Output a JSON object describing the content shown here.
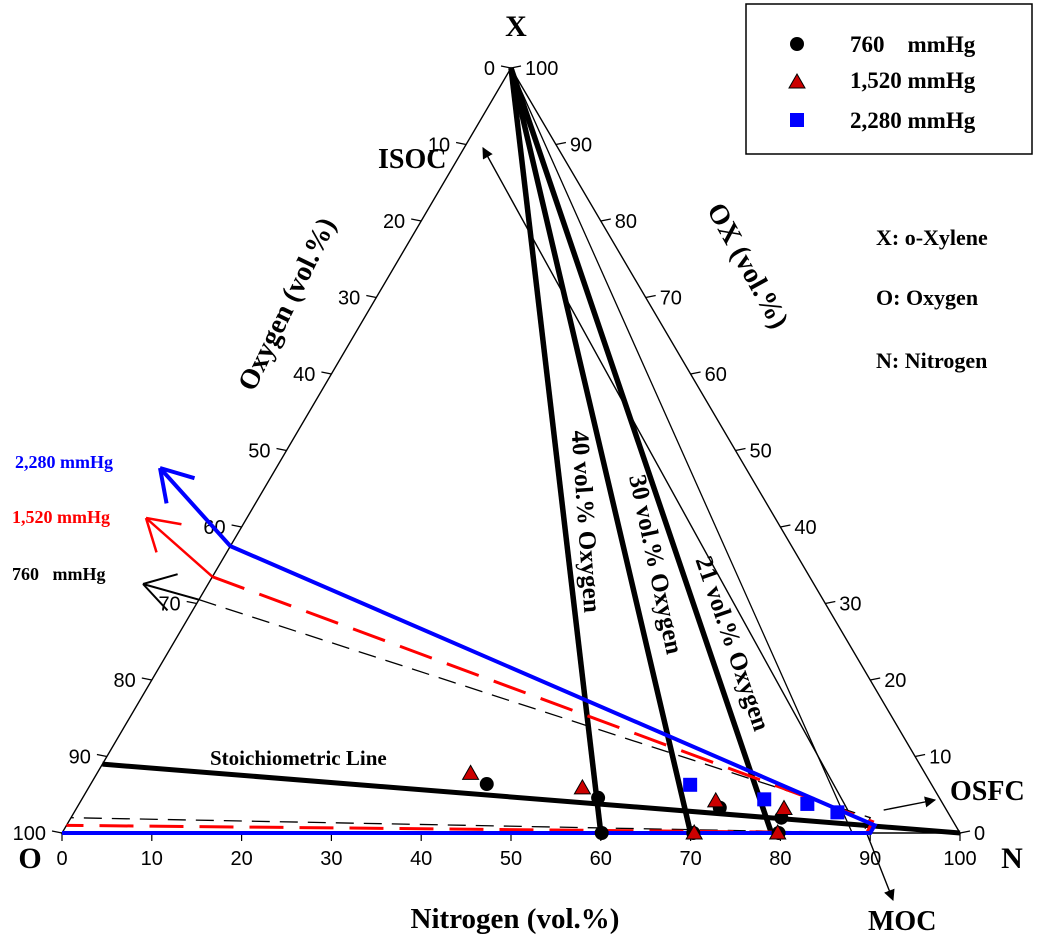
{
  "chart_data": {
    "type": "ternary",
    "vertices": {
      "top": "X",
      "left": "O",
      "right": "N"
    },
    "axis_labels": {
      "bottom": "Nitrogen (vol.%)",
      "left": "Oxygen (vol.%)",
      "right": "OX (vol.%)"
    },
    "ticks": {
      "bottom": [
        "0",
        "10",
        "20",
        "30",
        "40",
        "50",
        "60",
        "70",
        "80",
        "90",
        "100"
      ],
      "left": [
        "0",
        "10",
        "20",
        "30",
        "40",
        "50",
        "60",
        "70",
        "80",
        "90",
        "100"
      ],
      "right": [
        "0",
        "10",
        "20",
        "30",
        "40",
        "50",
        "60",
        "70",
        "80",
        "90",
        "100"
      ]
    },
    "definitions": [
      "X: o-Xylene",
      "O: Oxygen",
      "N: Nitrogen"
    ],
    "legend": {
      "placement": "top-right",
      "entries": [
        {
          "label": "760    mmHg",
          "marker": "circle",
          "color": "#000000"
        },
        {
          "label": "1,520 mmHg",
          "marker": "triangle",
          "color": "#cc0000"
        },
        {
          "label": "2,280 mmHg",
          "marker": "square",
          "color": "#0000ff"
        }
      ]
    },
    "annotations": {
      "isoc": "ISOC",
      "osfc": "OSFC",
      "moc": "MOC",
      "stoich": "Stoichiometric Line",
      "o2_40": "40 vol.% Oxygen",
      "o2_30": "30 vol.% Oxygen",
      "o2_21": "21 vol.% Oxygen",
      "arrow_2280": "2,280 mmHg",
      "arrow_1520": "1,520 mmHg",
      "arrow_760": "760   mmHg"
    },
    "colors": {
      "p760": "#000000",
      "p1520": "#ff0000",
      "p2280": "#0000ff",
      "marker1520": "#cc0000"
    },
    "oxygen_lines": [
      {
        "label_key": "o2_40",
        "from": {
          "N": 0,
          "O": 0,
          "X": 100
        },
        "to": {
          "N": 60,
          "O": 40,
          "X": 0
        }
      },
      {
        "label_key": "o2_30",
        "from": {
          "N": 0,
          "O": 0,
          "X": 100
        },
        "to": {
          "N": 70,
          "O": 30,
          "X": 0
        }
      },
      {
        "label_key": "o2_21",
        "from": {
          "N": 0,
          "O": 0,
          "X": 100
        },
        "to": {
          "N": 79,
          "O": 21,
          "X": 0
        }
      }
    ],
    "stoichiometric_line": {
      "from": {
        "N": 0,
        "O": 91,
        "X": 9
      },
      "to": {
        "N": 100,
        "O": 0,
        "X": 0
      }
    },
    "air_line": {
      "from": {
        "N": 0,
        "O": 0,
        "X": 100
      },
      "to": {
        "N": 88,
        "O": 12,
        "X": 0
      }
    },
    "series": [
      {
        "name": "760 mmHg",
        "points": [
          {
            "N": 44.1,
            "O": 49.5,
            "X": 6.4
          },
          {
            "N": 57.4,
            "O": 38.0,
            "X": 4.6
          },
          {
            "N": 71.6,
            "O": 25.1,
            "X": 3.3
          },
          {
            "N": 79.1,
            "O": 18.9,
            "X": 2.0
          },
          {
            "N": 60.1,
            "O": 39.9,
            "X": 0.0
          },
          {
            "N": 70.3,
            "O": 29.7,
            "X": 0.0
          },
          {
            "N": 79.8,
            "O": 20.2,
            "X": 0.0
          }
        ],
        "boundary": [
          {
            "N": 0,
            "O": 69.5,
            "X": 30.5
          },
          {
            "N": 89.0,
            "O": 9.0,
            "X": 2.0
          },
          {
            "N": 89.2,
            "O": 10.8,
            "X": 0.0
          },
          {
            "N": 0.0,
            "O": 98.0,
            "X": 2.0
          }
        ]
      },
      {
        "name": "1,520 mmHg",
        "points": [
          {
            "N": 41.6,
            "O": 50.6,
            "X": 7.8
          },
          {
            "N": 55.0,
            "O": 39.1,
            "X": 5.9
          },
          {
            "N": 70.7,
            "O": 25.1,
            "X": 4.2
          },
          {
            "N": 78.8,
            "O": 18.0,
            "X": 3.2
          },
          {
            "N": 70.4,
            "O": 29.6,
            "X": 0.0
          },
          {
            "N": 79.7,
            "O": 20.3,
            "X": 0.0
          }
        ],
        "boundary": [
          {
            "N": 0,
            "O": 66.5,
            "X": 33.5
          },
          {
            "N": 89.5,
            "O": 9.0,
            "X": 1.5
          },
          {
            "N": 89.6,
            "O": 10.4,
            "X": 0.0
          },
          {
            "N": 0.0,
            "O": 99.0,
            "X": 1.0
          }
        ]
      },
      {
        "name": "2,280 mmHg",
        "points": [
          {
            "N": 66.8,
            "O": 26.9,
            "X": 6.3
          },
          {
            "N": 76.0,
            "O": 19.6,
            "X": 4.4
          },
          {
            "N": 81.1,
            "O": 15.1,
            "X": 3.8
          },
          {
            "N": 85.0,
            "O": 12.3,
            "X": 2.7
          }
        ],
        "boundary": [
          {
            "N": 0,
            "O": 62.5,
            "X": 37.5
          },
          {
            "N": 90.0,
            "O": 9.0,
            "X": 1.0
          },
          {
            "N": 90.0,
            "O": 10.0,
            "X": 0.0
          },
          {
            "N": 0.0,
            "O": 100.0,
            "X": 0.0
          }
        ]
      }
    ]
  }
}
